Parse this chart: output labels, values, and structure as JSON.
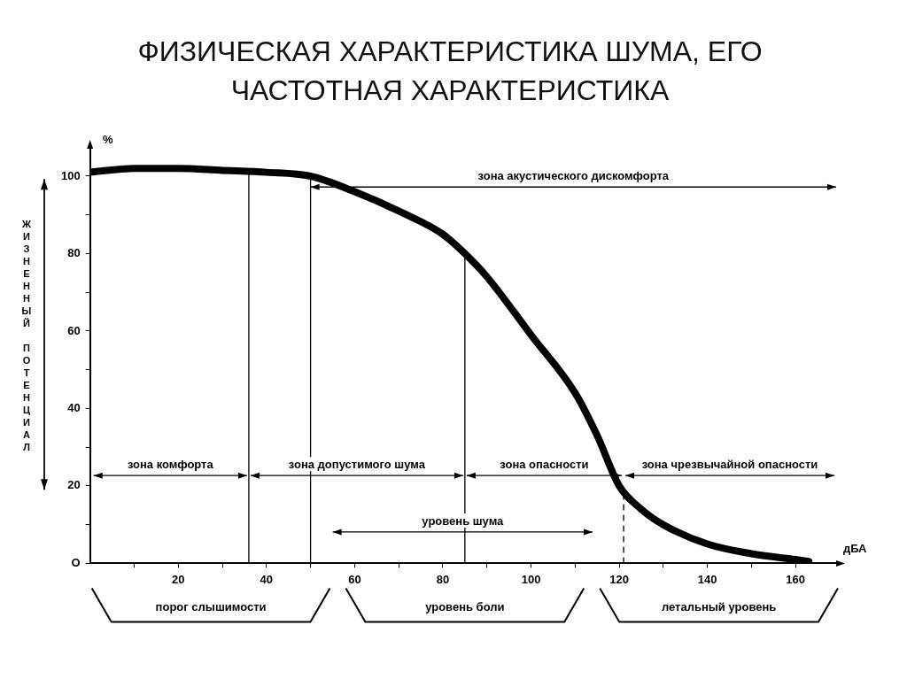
{
  "chart_data": {
    "type": "line",
    "title": "ФИЗИЧЕСКАЯ ХАРАКТЕРИСТИКА ШУМА, ЕГО ЧАСТОТНАЯ ХАРАКТЕРИСТИКА",
    "xlabel": "дБА",
    "ylabel": "ЖИЗНЕННЫЙ ПОТЕНЦИАЛ",
    "x": [
      0,
      10,
      20,
      30,
      40,
      50,
      60,
      70,
      80,
      85,
      90,
      100,
      110,
      115,
      120,
      125,
      130,
      140,
      150,
      160,
      163
    ],
    "series": [
      {
        "color": "#000000",
        "values": [
          101,
          102,
          102,
          101.5,
          101,
          100,
          96,
          91,
          85,
          80,
          74,
          59,
          44,
          33,
          20,
          14,
          10,
          5,
          2.5,
          1,
          0.5
        ]
      }
    ],
    "xlim": [
      0,
      170
    ],
    "ylim": [
      0,
      108
    ],
    "xticks": [
      {
        "value": 10,
        "label": null
      },
      20,
      {
        "value": 30,
        "label": null
      },
      40,
      {
        "value": 50,
        "label": null
      },
      60,
      {
        "value": 70,
        "label": null
      },
      80,
      {
        "value": 90,
        "label": null
      },
      100,
      {
        "value": 110,
        "label": null
      },
      120,
      {
        "value": 130,
        "label": null
      },
      140,
      {
        "value": 150,
        "label": null
      },
      160
    ],
    "yticks": [
      {
        "value": 0,
        "label": "O"
      },
      {
        "value": 10,
        "label": null
      },
      20,
      {
        "value": 30,
        "label": null
      },
      40,
      {
        "value": 50,
        "label": null
      },
      60,
      {
        "value": 70,
        "label": null
      },
      80,
      {
        "value": 90,
        "label": null
      },
      100
    ],
    "ref_lines": [
      {
        "axis": "x",
        "value": 36
      },
      {
        "axis": "x",
        "value": 50
      },
      {
        "axis": "x",
        "value": 85
      },
      {
        "axis": "x",
        "value": 121,
        "line_style": "dashed"
      }
    ],
    "annotations": [
      "%",
      "зона акустического дискомфорта",
      "зона комфорта",
      "зона допустимого шума",
      "зона опасности",
      "зона чрезвычайной опасности",
      "уровень шума",
      "порог слышимости",
      "уровень боли",
      "летальный уровень"
    ],
    "grid": false,
    "legend": false,
    "marker": "none",
    "line_style": "solid"
  }
}
